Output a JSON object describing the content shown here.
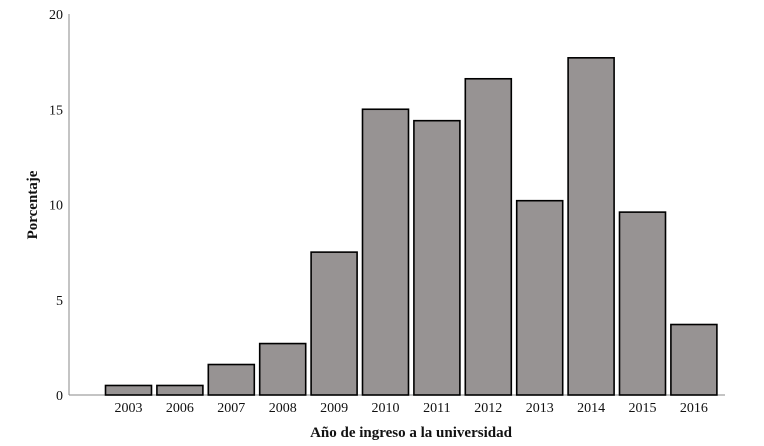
{
  "chart_data": {
    "type": "bar",
    "title": "",
    "xlabel": "Año de ingreso a la universidad",
    "ylabel": "Porcentaje",
    "categories": [
      "2003",
      "2006",
      "2007",
      "2008",
      "2009",
      "2010",
      "2011",
      "2012",
      "2013",
      "2014",
      "2015",
      "2016"
    ],
    "values": [
      0.5,
      0.5,
      1.6,
      2.7,
      7.5,
      15.0,
      14.4,
      16.6,
      10.2,
      17.7,
      9.6,
      3.7
    ],
    "ylim": [
      0,
      20
    ],
    "yticks": [
      "0",
      "5",
      "10",
      "15",
      "20"
    ],
    "grid": false,
    "legend": "none",
    "bar_color": "#979393",
    "bar_edge_color": "#000000"
  }
}
